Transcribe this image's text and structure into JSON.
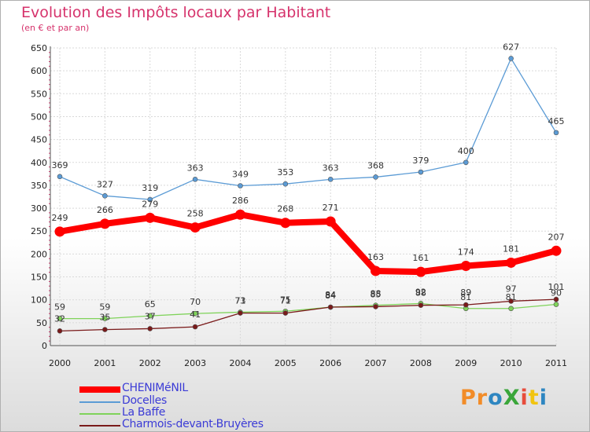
{
  "header": {
    "title": "Evolution des Impôts locaux par Habitant",
    "subtitle": "(en € et par an)"
  },
  "logo": {
    "text": "ProXiti"
  },
  "colors": {
    "title": "#d6336c",
    "legend_text": "#3b3bd6"
  },
  "chart_data": {
    "type": "line",
    "x": [
      "2000",
      "2001",
      "2002",
      "2003",
      "2004",
      "2005",
      "2006",
      "2007",
      "2008",
      "2009",
      "2010",
      "2011"
    ],
    "ylim": [
      0,
      650
    ],
    "yticks": [
      "0",
      "50",
      "100",
      "150",
      "200",
      "250",
      "300",
      "350",
      "400",
      "450",
      "500",
      "550",
      "600",
      "650"
    ],
    "grid": true,
    "legend_position": "bottom-left",
    "series": [
      {
        "name": "Docelles",
        "color": "#5b9bd5",
        "values": [
          369,
          327,
          319,
          363,
          349,
          353,
          363,
          368,
          379,
          400,
          627,
          465
        ]
      },
      {
        "name": "La Baffe",
        "color": "#7fd35a",
        "values": [
          59,
          59,
          65,
          70,
          73,
          75,
          84,
          88,
          92,
          81,
          81,
          90
        ]
      },
      {
        "name": "Charmois-devant-Bruyères",
        "color": "#7a1a1a",
        "values": [
          32,
          35,
          37,
          41,
          71,
          71,
          84,
          85,
          88,
          89,
          97,
          101
        ]
      },
      {
        "name": "CHENIMéNIL",
        "color": "#ff0000",
        "values": [
          249,
          266,
          279,
          258,
          286,
          268,
          271,
          163,
          161,
          174,
          181,
          207
        ]
      }
    ]
  }
}
